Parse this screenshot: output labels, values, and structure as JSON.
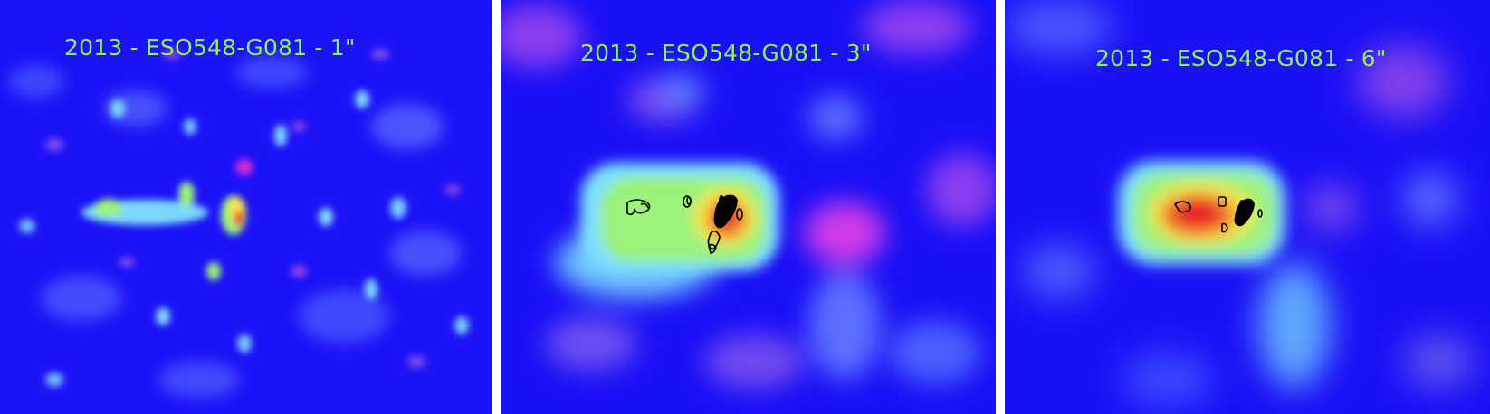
{
  "panels": [
    {
      "label": "2013 - ESO548-G081 - 1\""
    },
    {
      "label": "2013 - ESO548-G081 - 3\""
    },
    {
      "label": "2013 - ESO548-G081 - 6\""
    }
  ],
  "colors": {
    "background": "#1a10f5",
    "text": "#8ef05e",
    "contour": "#000000",
    "colormap": [
      "#1a10f5",
      "#5a6cff",
      "#7fd6ff",
      "#9cf27a",
      "#f6e44a",
      "#f07a2a",
      "#e8202a",
      "#d62ad8"
    ]
  }
}
